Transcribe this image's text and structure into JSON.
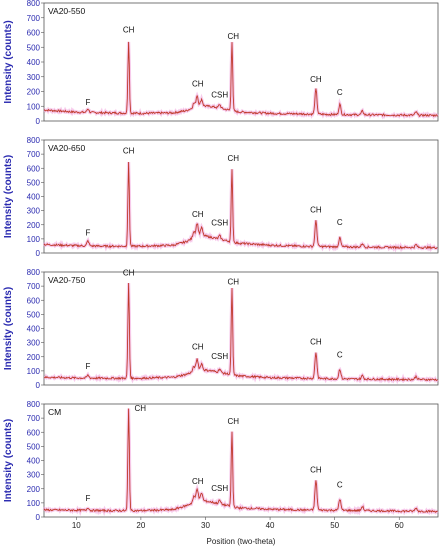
{
  "chart_data": {
    "type": "line",
    "ylabel": "Intensity (counts)",
    "xlabel": "Position (two-theta)",
    "xlim": [
      5,
      66
    ],
    "ylim": [
      0,
      800
    ],
    "yticks": [
      0,
      100,
      200,
      300,
      400,
      500,
      600,
      700,
      800
    ],
    "xticks": [
      10,
      20,
      30,
      40,
      50,
      60
    ],
    "colors": {
      "trace": "#c0392b",
      "halo": "#f0a0dc",
      "frame": "#555555",
      "axis_text": "#2a2ab0"
    },
    "panels": [
      {
        "title": "VA20-550",
        "baseline": [
          [
            5,
            75
          ],
          [
            10,
            60
          ],
          [
            15,
            55
          ],
          [
            20,
            52
          ],
          [
            25,
            55
          ],
          [
            27,
            70
          ],
          [
            29,
            105
          ],
          [
            31,
            98
          ],
          [
            33,
            80
          ],
          [
            35,
            62
          ],
          [
            40,
            52
          ],
          [
            45,
            48
          ],
          [
            50,
            44
          ],
          [
            55,
            42
          ],
          [
            60,
            40
          ],
          [
            66,
            38
          ]
        ],
        "peaks": [
          [
            11.8,
            25
          ],
          [
            18.1,
            490
          ],
          [
            28.2,
            30
          ],
          [
            28.7,
            75
          ],
          [
            29.4,
            45
          ],
          [
            32.2,
            25
          ],
          [
            34.1,
            470
          ],
          [
            47.1,
            170
          ],
          [
            50.8,
            70
          ],
          [
            54.3,
            25
          ],
          [
            62.6,
            22
          ]
        ],
        "annotations": [
          {
            "text": "F",
            "x": 11.8,
            "y": 110
          },
          {
            "text": "CH",
            "x": 18.1,
            "y": 600
          },
          {
            "text": "CH",
            "x": 28.8,
            "y": 235
          },
          {
            "text": "CSH",
            "x": 32.2,
            "y": 160
          },
          {
            "text": "CH",
            "x": 34.3,
            "y": 555
          },
          {
            "text": "CH",
            "x": 47.1,
            "y": 265
          },
          {
            "text": "C",
            "x": 50.8,
            "y": 175
          }
        ]
      },
      {
        "title": "VA20-650",
        "baseline": [
          [
            5,
            60
          ],
          [
            10,
            52
          ],
          [
            15,
            48
          ],
          [
            20,
            48
          ],
          [
            25,
            55
          ],
          [
            27,
            80
          ],
          [
            29,
            130
          ],
          [
            31,
            110
          ],
          [
            33,
            90
          ],
          [
            35,
            70
          ],
          [
            40,
            55
          ],
          [
            45,
            48
          ],
          [
            50,
            44
          ],
          [
            55,
            42
          ],
          [
            60,
            40
          ],
          [
            66,
            38
          ]
        ],
        "peaks": [
          [
            11.8,
            35
          ],
          [
            18.1,
            590
          ],
          [
            28.2,
            45
          ],
          [
            28.7,
            90
          ],
          [
            29.4,
            55
          ],
          [
            32.2,
            25
          ],
          [
            34.1,
            510
          ],
          [
            47.1,
            180
          ],
          [
            50.8,
            65
          ],
          [
            54.3,
            25
          ],
          [
            62.6,
            20
          ]
        ],
        "annotations": [
          {
            "text": "F",
            "x": 11.8,
            "y": 125
          },
          {
            "text": "CH",
            "x": 18.1,
            "y": 705
          },
          {
            "text": "CH",
            "x": 28.8,
            "y": 255
          },
          {
            "text": "CSH",
            "x": 32.2,
            "y": 195
          },
          {
            "text": "CH",
            "x": 34.3,
            "y": 650
          },
          {
            "text": "CH",
            "x": 47.1,
            "y": 285
          },
          {
            "text": "C",
            "x": 50.8,
            "y": 200
          }
        ]
      },
      {
        "title": "VA20-750",
        "baseline": [
          [
            5,
            55
          ],
          [
            10,
            50
          ],
          [
            15,
            48
          ],
          [
            20,
            48
          ],
          [
            25,
            55
          ],
          [
            27,
            75
          ],
          [
            29,
            110
          ],
          [
            31,
            100
          ],
          [
            33,
            82
          ],
          [
            35,
            65
          ],
          [
            40,
            52
          ],
          [
            45,
            48
          ],
          [
            50,
            44
          ],
          [
            55,
            42
          ],
          [
            60,
            40
          ],
          [
            66,
            38
          ]
        ],
        "peaks": [
          [
            11.8,
            20
          ],
          [
            18.1,
            670
          ],
          [
            28.2,
            35
          ],
          [
            28.7,
            80
          ],
          [
            29.4,
            45
          ],
          [
            32.2,
            25
          ],
          [
            34.1,
            610
          ],
          [
            47.1,
            185
          ],
          [
            50.8,
            70
          ],
          [
            54.3,
            25
          ],
          [
            62.6,
            22
          ]
        ],
        "annotations": [
          {
            "text": "F",
            "x": 11.8,
            "y": 115
          },
          {
            "text": "CH",
            "x": 18.1,
            "y": 775
          },
          {
            "text": "CH",
            "x": 28.8,
            "y": 250
          },
          {
            "text": "CSH",
            "x": 32.2,
            "y": 185
          },
          {
            "text": "CH",
            "x": 34.3,
            "y": 710
          },
          {
            "text": "CH",
            "x": 47.1,
            "y": 285
          },
          {
            "text": "C",
            "x": 50.8,
            "y": 195
          }
        ]
      },
      {
        "title": "CM",
        "baseline": [
          [
            5,
            50
          ],
          [
            10,
            48
          ],
          [
            15,
            45
          ],
          [
            20,
            45
          ],
          [
            25,
            52
          ],
          [
            27,
            80
          ],
          [
            29,
            120
          ],
          [
            31,
            105
          ],
          [
            33,
            85
          ],
          [
            35,
            65
          ],
          [
            40,
            55
          ],
          [
            45,
            50
          ],
          [
            50,
            48
          ],
          [
            55,
            45
          ],
          [
            60,
            42
          ],
          [
            66,
            40
          ]
        ],
        "peaks": [
          [
            11.8,
            20
          ],
          [
            18.1,
            720
          ],
          [
            28.2,
            40
          ],
          [
            28.7,
            90
          ],
          [
            29.4,
            55
          ],
          [
            32.2,
            25
          ],
          [
            34.1,
            530
          ],
          [
            47.1,
            210
          ],
          [
            50.8,
            80
          ],
          [
            54.3,
            30
          ],
          [
            62.6,
            22
          ]
        ],
        "annotations": [
          {
            "text": "F",
            "x": 11.8,
            "y": 115
          },
          {
            "text": "CH",
            "x": 19.9,
            "y": 750
          },
          {
            "text": "CH",
            "x": 28.8,
            "y": 235
          },
          {
            "text": "CSH",
            "x": 32.2,
            "y": 185
          },
          {
            "text": "CH",
            "x": 34.3,
            "y": 660
          },
          {
            "text": "CH",
            "x": 47.1,
            "y": 315
          },
          {
            "text": "C",
            "x": 50.8,
            "y": 210
          }
        ]
      }
    ]
  }
}
